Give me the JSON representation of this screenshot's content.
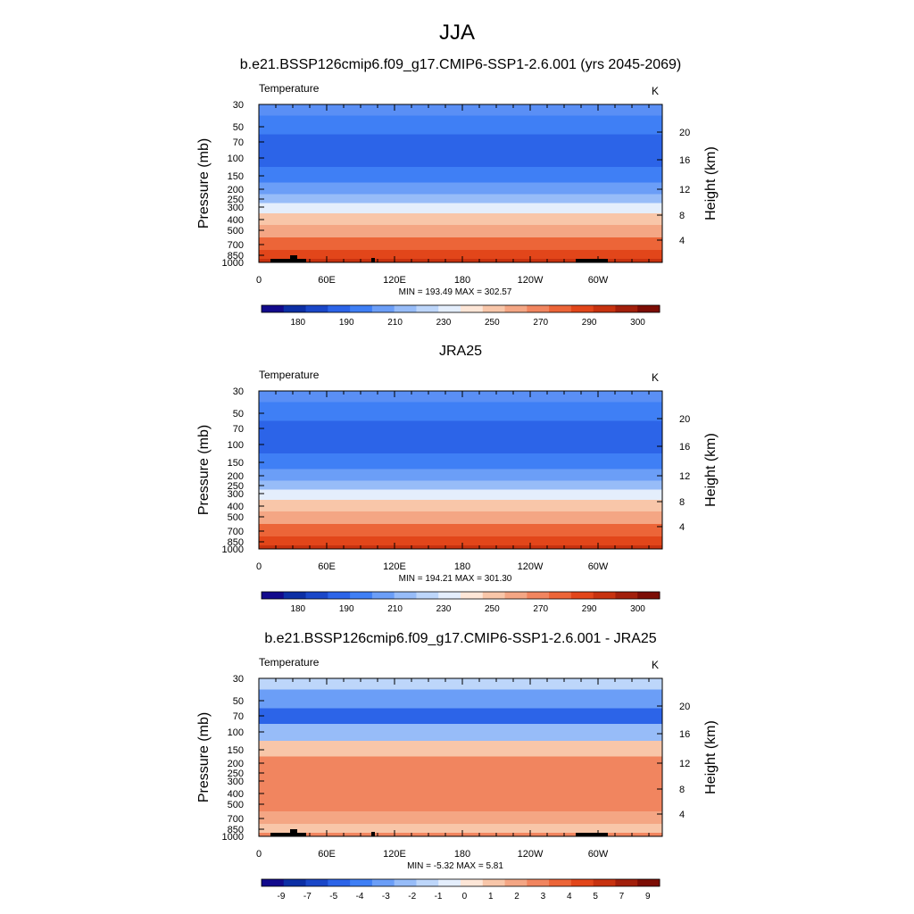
{
  "figure": {
    "title": "JJA"
  },
  "chart_data": [
    {
      "type": "heatmap",
      "title": "b.e21.BSSP126cmip6.f09_g17.CMIP6-SSP1-2.6.001 (yrs 2045-2069)",
      "left_label": "Temperature",
      "right_label": "K",
      "ylabel": "Pressure (mb)",
      "y2label": "Height (km)",
      "pressure_ticks": [
        "30",
        "50",
        "70",
        "100",
        "150",
        "200",
        "250",
        "300",
        "400",
        "500",
        "700",
        "850",
        "1000"
      ],
      "height_ticks": [
        "4",
        "8",
        "12",
        "16",
        "20"
      ],
      "lon_ticks": [
        "0",
        "60E",
        "120E",
        "180",
        "120W",
        "60W"
      ],
      "stats": "MIN = 193.49  MAX = 302.57",
      "min": 193.49,
      "max": 302.57,
      "colorbar_labels": [
        "180",
        "190",
        "210",
        "230",
        "250",
        "270",
        "290",
        "300"
      ],
      "colors": [
        "#120a8c",
        "#0c2fa5",
        "#1a47c8",
        "#2c64e8",
        "#3f7ff5",
        "#6b9ef7",
        "#97bcf8",
        "#bdd6fa",
        "#e4eefc",
        "#fde6d7",
        "#f8c6a9",
        "#f4a684",
        "#f1855f",
        "#ec6538",
        "#e2461a",
        "#c7320f",
        "#a21f0b",
        "#7c0d05"
      ],
      "levels": [
        {
          "p": "30",
          "color": "#5a8ff5"
        },
        {
          "p": "50",
          "color": "#3f7ff5"
        },
        {
          "p": "70",
          "color": "#2c64e8"
        },
        {
          "p": "100",
          "color": "#2c64e8"
        },
        {
          "p": "150",
          "color": "#3f7ff5"
        },
        {
          "p": "200",
          "color": "#6b9ef7"
        },
        {
          "p": "250",
          "color": "#97bcf8"
        },
        {
          "p": "300",
          "color": "#e4eefc"
        },
        {
          "p": "400",
          "color": "#f8c6a9"
        },
        {
          "p": "500",
          "color": "#f4a684"
        },
        {
          "p": "700",
          "color": "#ec6538"
        },
        {
          "p": "850",
          "color": "#e2461a"
        },
        {
          "p": "1000",
          "color": "#c7320f"
        }
      ]
    },
    {
      "type": "heatmap",
      "title": "JRA25",
      "left_label": "Temperature",
      "right_label": "K",
      "ylabel": "Pressure (mb)",
      "y2label": "Height (km)",
      "pressure_ticks": [
        "30",
        "50",
        "70",
        "100",
        "150",
        "200",
        "250",
        "300",
        "400",
        "500",
        "700",
        "850",
        "1000"
      ],
      "height_ticks": [
        "4",
        "8",
        "12",
        "16",
        "20"
      ],
      "lon_ticks": [
        "0",
        "60E",
        "120E",
        "180",
        "120W",
        "60W"
      ],
      "stats": "MIN = 194.21  MAX = 301.30",
      "min": 194.21,
      "max": 301.3,
      "colorbar_labels": [
        "180",
        "190",
        "210",
        "230",
        "250",
        "270",
        "290",
        "300"
      ],
      "colors": [
        "#120a8c",
        "#0c2fa5",
        "#1a47c8",
        "#2c64e8",
        "#3f7ff5",
        "#6b9ef7",
        "#97bcf8",
        "#bdd6fa",
        "#e4eefc",
        "#fde6d7",
        "#f8c6a9",
        "#f4a684",
        "#f1855f",
        "#ec6538",
        "#e2461a",
        "#c7320f",
        "#a21f0b",
        "#7c0d05"
      ],
      "levels": [
        {
          "p": "30",
          "color": "#5a8ff5"
        },
        {
          "p": "50",
          "color": "#3f7ff5"
        },
        {
          "p": "70",
          "color": "#2c64e8"
        },
        {
          "p": "100",
          "color": "#2c64e8"
        },
        {
          "p": "150",
          "color": "#3f7ff5"
        },
        {
          "p": "200",
          "color": "#6b9ef7"
        },
        {
          "p": "250",
          "color": "#97bcf8"
        },
        {
          "p": "300",
          "color": "#e4eefc"
        },
        {
          "p": "400",
          "color": "#f8c6a9"
        },
        {
          "p": "500",
          "color": "#f4a684"
        },
        {
          "p": "700",
          "color": "#ec6538"
        },
        {
          "p": "850",
          "color": "#e2461a"
        },
        {
          "p": "1000",
          "color": "#c7320f"
        }
      ]
    },
    {
      "type": "heatmap",
      "title": "b.e21.BSSP126cmip6.f09_g17.CMIP6-SSP1-2.6.001 - JRA25",
      "left_label": "Temperature",
      "right_label": "K",
      "ylabel": "Pressure (mb)",
      "y2label": "Height (km)",
      "pressure_ticks": [
        "30",
        "50",
        "70",
        "100",
        "150",
        "200",
        "250",
        "300",
        "400",
        "500",
        "700",
        "850",
        "1000"
      ],
      "height_ticks": [
        "4",
        "8",
        "12",
        "16",
        "20"
      ],
      "lon_ticks": [
        "0",
        "60E",
        "120E",
        "180",
        "120W",
        "60W"
      ],
      "stats": "MIN =  -5.32  MAX =   5.81",
      "min": -5.32,
      "max": 5.81,
      "colorbar_labels": [
        "-9",
        "-7",
        "-5",
        "-4",
        "-3",
        "-2",
        "-1",
        "0",
        "1",
        "2",
        "3",
        "4",
        "5",
        "7",
        "9"
      ],
      "colors": [
        "#120a8c",
        "#0c2fa5",
        "#1a47c8",
        "#2c64e8",
        "#3f7ff5",
        "#6b9ef7",
        "#97bcf8",
        "#bdd6fa",
        "#e4eefc",
        "#fde6d7",
        "#f8c6a9",
        "#f4a684",
        "#f1855f",
        "#ec6538",
        "#e2461a",
        "#c7320f",
        "#a21f0b",
        "#7c0d05"
      ],
      "levels": [
        {
          "p": "30",
          "color": "#bdd6fa"
        },
        {
          "p": "50",
          "color": "#6b9ef7"
        },
        {
          "p": "70",
          "color": "#2c64e8"
        },
        {
          "p": "100",
          "color": "#97bcf8"
        },
        {
          "p": "150",
          "color": "#f8c6a9"
        },
        {
          "p": "200",
          "color": "#f1855f"
        },
        {
          "p": "250",
          "color": "#f1855f"
        },
        {
          "p": "300",
          "color": "#f1855f"
        },
        {
          "p": "400",
          "color": "#f1855f"
        },
        {
          "p": "500",
          "color": "#f1855f"
        },
        {
          "p": "700",
          "color": "#f4a684"
        },
        {
          "p": "850",
          "color": "#f8c6a9"
        },
        {
          "p": "1000",
          "color": "#f1855f"
        }
      ]
    }
  ]
}
